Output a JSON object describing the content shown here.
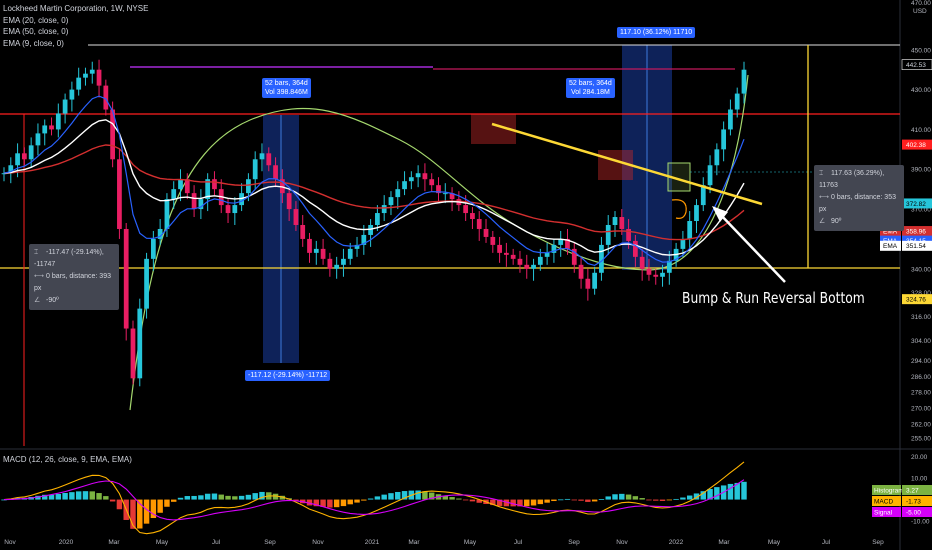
{
  "legend": {
    "symbol": "Lockheed Martin Corporation, 1W, NYSE",
    "ema20": "EMA (20, close, 0)",
    "ema50": "EMA (50, close, 0)",
    "ema9": "EMA (9, close, 0)"
  },
  "macd_legend": "MACD (12, 26, close, 9, EMA, EMA)",
  "annotation": "Bump & Run Reversal Bottom",
  "tags": {
    "top_range": "117.10 (36.12%) 11710",
    "range1_line1": "52 bars, 364d",
    "range1_line2": "Vol 398.846M",
    "range2_line1": "52 bars, 364d",
    "range2_line2": "Vol 284.18M",
    "bottom_range": "-117.12 (-29.14%) -11712"
  },
  "measure_left": {
    "line1": "-117.47 (-29.14%), -11747",
    "line2": "0 bars, distance: 393 px",
    "line3": "-90º"
  },
  "measure_right": {
    "line1": "117.63 (36.29%), 11763",
    "line2": "0 bars, distance: 353 px",
    "line3": "90º"
  },
  "colors": {
    "background": "#000000",
    "up_candle": "#26c6da",
    "down_candle": "#e91e63",
    "ema9": "#ffffff",
    "ema20": "#2962ff",
    "ema50": "#d32f2f",
    "trendline": "#fdd835",
    "curve": "#a5d86e",
    "red_level": "#ff1f1f",
    "yellow_level": "#fdd835"
  },
  "chart_data": {
    "type": "candlestick",
    "title": "Lockheed Martin Corporation, 1W, NYSE",
    "x_tick_labels": [
      "Nov",
      "2020",
      "Mar",
      "May",
      "Jul",
      "Sep",
      "Nov",
      "2021",
      "Mar",
      "May",
      "Jul",
      "Sep",
      "Nov",
      "2022",
      "Mar",
      "May",
      "Jul",
      "Sep"
    ],
    "y_axis": {
      "unit": "USD",
      "ticks": [
        450.0,
        430.0,
        410.0,
        390.0,
        370.0,
        355.0,
        340.0,
        328.0,
        316.0,
        304.0,
        294.0,
        286.0,
        278.0,
        270.0,
        262.0,
        255.0
      ],
      "top_label": "470.00",
      "range": [
        250,
        475
      ]
    },
    "close_approx": [
      388,
      392,
      398,
      395,
      402,
      408,
      412,
      410,
      418,
      425,
      430,
      436,
      438,
      440,
      432,
      420,
      395,
      360,
      310,
      285,
      320,
      345,
      355,
      360,
      375,
      380,
      385,
      378,
      370,
      375,
      385,
      380,
      372,
      368,
      372,
      378,
      385,
      395,
      398,
      392,
      385,
      378,
      370,
      362,
      355,
      348,
      350,
      345,
      340,
      342,
      345,
      350,
      352,
      357,
      362,
      368,
      372,
      376,
      380,
      384,
      386,
      388,
      385,
      382,
      378,
      378,
      375,
      372,
      368,
      365,
      360,
      356,
      352,
      348,
      347,
      345,
      342,
      340,
      342,
      346,
      348,
      352,
      355,
      350,
      342,
      335,
      330,
      338,
      352,
      362,
      366,
      360,
      354,
      346,
      340,
      337,
      336,
      338,
      344,
      350,
      355,
      364,
      372,
      382,
      392,
      400,
      410,
      420,
      428,
      440
    ],
    "price_badges": [
      {
        "label": "442.53",
        "price": 442.53,
        "bg": "#000000",
        "fg": "#d1d4dc",
        "border": "#ffffff"
      },
      {
        "label": "402.38",
        "price": 402.38,
        "bg": "#ff1f1f",
        "fg": "#ffffff"
      },
      {
        "label": "372.82",
        "price": 372.82,
        "bg": "#26c6da",
        "fg": "#000000"
      },
      {
        "label": "358.96",
        "price": 358.96,
        "bg": "#d32f2f",
        "fg": "#ffffff",
        "prefix": "EMA"
      },
      {
        "label": "354.15",
        "price": 354.15,
        "bg": "#2962ff",
        "fg": "#ffffff",
        "prefix": "EMA"
      },
      {
        "label": "351.54",
        "price": 351.54,
        "bg": "#ffffff",
        "fg": "#000000",
        "prefix": "EMA"
      },
      {
        "label": "324.76",
        "price": 324.76,
        "bg": "#fdd835",
        "fg": "#000000"
      }
    ],
    "levels": {
      "resistance_top": 442.53,
      "red_line": 402.38,
      "support": 324.76
    },
    "macd": {
      "y_ticks": [
        "20.00",
        "10.00",
        "0.00",
        "-10.00"
      ],
      "histogram_label": "Histogram",
      "histogram": "3.27",
      "macd_label": "MACD",
      "macd_value": "-1.73",
      "signal_label": "Signal",
      "signal": "-5.00",
      "range": [
        -15,
        22
      ]
    }
  }
}
